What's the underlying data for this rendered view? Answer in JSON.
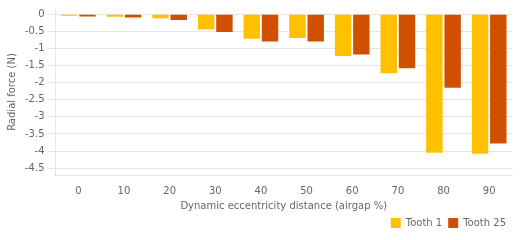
{
  "chart_data": {
    "type": "bar",
    "categories": [
      0,
      10,
      20,
      30,
      40,
      50,
      60,
      70,
      80,
      90
    ],
    "series": [
      {
        "name": "Tooth 1",
        "color": "#FFC000",
        "values": [
          -0.05,
          -0.08,
          -0.12,
          -0.45,
          -0.72,
          -0.7,
          -1.22,
          -1.73,
          -4.05,
          -4.08
        ]
      },
      {
        "name": "Tooth 25",
        "color": "#D05000",
        "values": [
          -0.07,
          -0.1,
          -0.17,
          -0.52,
          -0.8,
          -0.8,
          -1.18,
          -1.58,
          -2.15,
          -3.78
        ]
      }
    ],
    "xlabel": "Dynamic eccentricity distance (airgap %)",
    "ylabel": "Radial force (N)",
    "ylim": [
      -4.7,
      0.15
    ],
    "yticks": [
      0,
      -0.5,
      -1,
      -1.5,
      -2,
      -2.5,
      -3,
      -3.5,
      -4,
      -4.5
    ],
    "grid": true,
    "legend": "lower right"
  }
}
